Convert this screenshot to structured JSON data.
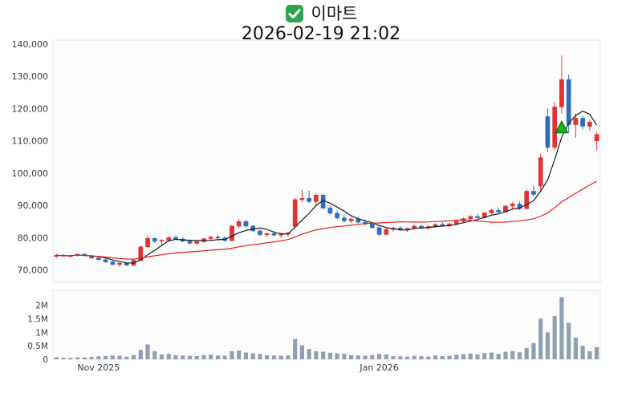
{
  "colors": {
    "up": "#e03232",
    "down": "#2f6db8",
    "ma_fast": "#1b1b1b",
    "ma_slow": "#e02020",
    "volume_bar": "#90a0b4",
    "marker": "#1db51d",
    "marker_edge": "#0c7a0c",
    "checkbox_green": "#2da44e",
    "panel_fill": "#fcfcfc",
    "panel_border": "#e4e4e4"
  },
  "chart_data": {
    "type": "candlestick",
    "title": "이마트",
    "subtitle": "2026-02-19 21:02",
    "legend_position": "none",
    "grid": false,
    "price_axis": {
      "lim": [
        66200,
        141200
      ],
      "ticks": [
        {
          "label": "140,000",
          "value": 140000
        },
        {
          "label": "130,000",
          "value": 130000
        },
        {
          "label": "120,000",
          "value": 120000
        },
        {
          "label": "110,000",
          "value": 110000
        },
        {
          "label": "100,000",
          "value": 100000
        },
        {
          "label": "90,000",
          "value": 90000
        },
        {
          "label": "80,000",
          "value": 80000
        },
        {
          "label": "70,000",
          "value": 70000
        }
      ]
    },
    "volume_axis": {
      "lim": [
        0,
        2550000
      ],
      "ticks": [
        {
          "label": "2M",
          "value": 2000000
        },
        {
          "label": "1.5M",
          "value": 1500000
        },
        {
          "label": "1M",
          "value": 1000000
        },
        {
          "label": "0.5M",
          "value": 500000
        },
        {
          "label": "0",
          "value": 0
        }
      ]
    },
    "x_ticks": [
      {
        "index": 6,
        "label": "Nov 2025"
      },
      {
        "index": 46,
        "label": "Jan 2026"
      }
    ],
    "overlays": [
      {
        "name": "ma-fast",
        "window": 5,
        "color_key": "ma_fast"
      },
      {
        "name": "ma-slow",
        "window": 25,
        "color_key": "ma_slow"
      }
    ],
    "markers": [
      {
        "name": "signal-marker",
        "shape": "triangle-up",
        "index": 72,
        "price": 114000
      }
    ],
    "ohlcv": [
      [
        74200,
        74900,
        73800,
        74600,
        80000
      ],
      [
        74600,
        75000,
        74100,
        74300,
        60000
      ],
      [
        74300,
        74700,
        73900,
        74500,
        55000
      ],
      [
        74500,
        75100,
        74200,
        74900,
        70000
      ],
      [
        74900,
        75200,
        74300,
        74400,
        65000
      ],
      [
        74400,
        74700,
        73500,
        73700,
        90000
      ],
      [
        73700,
        74200,
        72900,
        73200,
        110000
      ],
      [
        73200,
        73600,
        72200,
        72500,
        120000
      ],
      [
        72500,
        72900,
        71400,
        71700,
        140000
      ],
      [
        71700,
        72400,
        71000,
        72100,
        130000
      ],
      [
        72100,
        72300,
        71200,
        71500,
        100000
      ],
      [
        71500,
        73200,
        71300,
        73000,
        160000
      ],
      [
        73000,
        77500,
        72800,
        77200,
        350000
      ],
      [
        77200,
        80600,
        76800,
        79800,
        550000
      ],
      [
        79800,
        80200,
        78400,
        78900,
        300000
      ],
      [
        78900,
        79600,
        77800,
        79200,
        180000
      ],
      [
        79200,
        80400,
        78800,
        80100,
        200000
      ],
      [
        80100,
        80800,
        79300,
        79600,
        150000
      ],
      [
        79600,
        80200,
        78600,
        78900,
        140000
      ],
      [
        78900,
        79400,
        77900,
        78300,
        130000
      ],
      [
        78300,
        79000,
        77600,
        78800,
        120000
      ],
      [
        78800,
        80000,
        78500,
        79700,
        160000
      ],
      [
        79700,
        80500,
        79000,
        80200,
        170000
      ],
      [
        80200,
        80900,
        79500,
        79900,
        140000
      ],
      [
        79900,
        80400,
        78800,
        79100,
        130000
      ],
      [
        79100,
        84000,
        78900,
        83600,
        300000
      ],
      [
        83600,
        85800,
        83000,
        85000,
        320000
      ],
      [
        85000,
        85500,
        83200,
        83600,
        250000
      ],
      [
        83600,
        84000,
        81800,
        82100,
        220000
      ],
      [
        82100,
        82600,
        80600,
        80900,
        200000
      ],
      [
        80900,
        81600,
        80200,
        81300,
        150000
      ],
      [
        81300,
        82000,
        80500,
        80800,
        140000
      ],
      [
        80800,
        81400,
        79900,
        81100,
        130000
      ],
      [
        81100,
        81800,
        80400,
        81500,
        140000
      ],
      [
        83500,
        92300,
        82800,
        91800,
        750000
      ],
      [
        91800,
        94900,
        91000,
        92200,
        520000
      ],
      [
        92200,
        94600,
        90800,
        91200,
        380000
      ],
      [
        91200,
        93800,
        90200,
        93200,
        300000
      ],
      [
        93200,
        93600,
        88800,
        89200,
        280000
      ],
      [
        89200,
        90000,
        87200,
        87600,
        240000
      ],
      [
        87600,
        88400,
        85800,
        86100,
        220000
      ],
      [
        86100,
        87000,
        84800,
        85200,
        200000
      ],
      [
        85200,
        86200,
        84600,
        85800,
        150000
      ],
      [
        85800,
        86400,
        84400,
        84800,
        140000
      ],
      [
        84800,
        85500,
        83800,
        84300,
        130000
      ],
      [
        84300,
        84900,
        82800,
        83100,
        160000
      ],
      [
        83100,
        83800,
        80600,
        81000,
        200000
      ],
      [
        81000,
        83000,
        80800,
        82600,
        180000
      ],
      [
        82600,
        83400,
        81900,
        83000,
        120000
      ],
      [
        83000,
        83600,
        82200,
        82500,
        110000
      ],
      [
        82500,
        83200,
        81800,
        82900,
        100000
      ],
      [
        82900,
        84000,
        82500,
        83600,
        130000
      ],
      [
        83600,
        84200,
        82800,
        83100,
        110000
      ],
      [
        83100,
        83800,
        82400,
        83500,
        100000
      ],
      [
        83500,
        84500,
        83200,
        84100,
        140000
      ],
      [
        84100,
        84800,
        83400,
        83800,
        120000
      ],
      [
        83800,
        84600,
        83300,
        84300,
        130000
      ],
      [
        84300,
        85400,
        84000,
        85100,
        170000
      ],
      [
        85100,
        86200,
        84600,
        85900,
        190000
      ],
      [
        85900,
        87000,
        85400,
        86600,
        210000
      ],
      [
        86600,
        87400,
        85800,
        86200,
        180000
      ],
      [
        86200,
        88000,
        86000,
        87700,
        230000
      ],
      [
        87700,
        89000,
        87200,
        88500,
        250000
      ],
      [
        88500,
        89400,
        87600,
        88000,
        200000
      ],
      [
        88000,
        90200,
        87800,
        89800,
        280000
      ],
      [
        89800,
        91000,
        88900,
        90500,
        300000
      ],
      [
        90500,
        91200,
        88600,
        89000,
        260000
      ],
      [
        89000,
        95000,
        88800,
        94400,
        420000
      ],
      [
        94400,
        96000,
        92800,
        93400,
        600000
      ],
      [
        96000,
        106000,
        94500,
        104800,
        1500000
      ],
      [
        117500,
        120000,
        106500,
        108000,
        1000000
      ],
      [
        108000,
        122000,
        107200,
        120500,
        1600000
      ],
      [
        120500,
        136500,
        118500,
        129000,
        2300000
      ],
      [
        129000,
        130500,
        112500,
        115000,
        1350000
      ],
      [
        115000,
        118500,
        111000,
        117000,
        800000
      ],
      [
        117000,
        117800,
        113500,
        114500,
        500000
      ],
      [
        114500,
        116500,
        113000,
        115800,
        300000
      ],
      [
        110000,
        112800,
        107000,
        112000,
        450000
      ]
    ]
  }
}
